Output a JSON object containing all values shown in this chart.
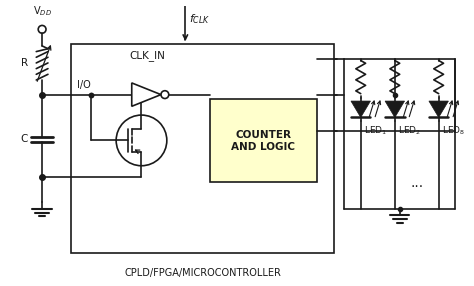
{
  "bg_color": "#ffffff",
  "line_color": "#1a1a1a",
  "box_fill": "#ffffcc",
  "fig_width": 4.74,
  "fig_height": 2.86,
  "dpi": 100,
  "title": "CPLD/FPGA/MICROCONTROLLER",
  "clk_in_label": "CLK_IN",
  "io_label": "I/O",
  "counter_label": "COUNTER\nAND LOGIC",
  "led_labels": [
    "LED$_1$",
    "LED$_2$",
    "LED$_8$"
  ],
  "vdd_label": "V$_{DD}$",
  "r_label": "R",
  "c_label": "C",
  "fclk_label": "$f_{CLK}$"
}
